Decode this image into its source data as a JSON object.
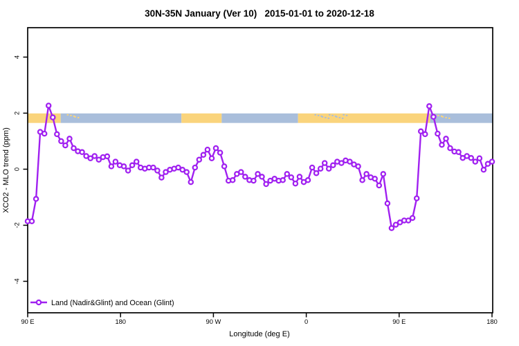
{
  "chart_data": {
    "type": "line",
    "title": "30N-35N January (Ver 10)   2015-01-01 to 2020-12-18",
    "xlabel": "Longitude (deg E)",
    "ylabel": "XCO2 - MLO trend (ppm)",
    "ylim": [
      -5,
      5
    ],
    "yticks": [
      4,
      2,
      0,
      -2,
      -4
    ],
    "xticks": [
      {
        "deg": 90,
        "label": "90 E"
      },
      {
        "deg": 180,
        "label": "180"
      },
      {
        "deg": 270,
        "label": "90 W"
      },
      {
        "deg": 360,
        "label": "0"
      },
      {
        "deg": 450,
        "label": "90 E"
      },
      {
        "deg": 540,
        "label": "180"
      }
    ],
    "axis_note": "x axis runs 450 degrees eastward from 90E (wraps past dateline and 0 back to 180); data for 90E-180 is repeated",
    "grid": "off",
    "legend": {
      "position": "bottom-left",
      "label": "Land (Nadir&Glint) and Ocean (Glint)"
    },
    "series": [
      {
        "name": "Land (Nadir&Glint) and Ocean (Glint)",
        "color": "#A020F0",
        "marker": "open-circle",
        "x_start_deg": 90,
        "x_end_deg": 540,
        "values": [
          -1.86,
          -1.86,
          -1.06,
          1.33,
          1.27,
          2.27,
          1.85,
          1.25,
          1.0,
          0.85,
          1.09,
          0.75,
          0.64,
          0.61,
          0.47,
          0.39,
          0.47,
          0.34,
          0.43,
          0.46,
          0.1,
          0.27,
          0.14,
          0.1,
          -0.05,
          0.14,
          0.27,
          0.06,
          0.02,
          0.06,
          0.06,
          -0.05,
          -0.3,
          -0.1,
          -0.02,
          0.02,
          0.06,
          -0.02,
          -0.1,
          -0.46,
          0.06,
          0.34,
          0.51,
          0.7,
          0.39,
          0.75,
          0.59,
          0.1,
          -0.41,
          -0.39,
          -0.17,
          -0.1,
          -0.27,
          -0.39,
          -0.41,
          -0.17,
          -0.27,
          -0.53,
          -0.41,
          -0.34,
          -0.41,
          -0.39,
          -0.17,
          -0.29,
          -0.51,
          -0.27,
          -0.46,
          -0.39,
          0.06,
          -0.14,
          0.02,
          0.22,
          0.02,
          0.14,
          0.27,
          0.22,
          0.31,
          0.27,
          0.17,
          0.1,
          -0.39,
          -0.17,
          -0.29,
          -0.34,
          -0.58,
          -0.17,
          -1.22,
          -2.1,
          -1.98,
          -1.9,
          -1.83,
          -1.83,
          -1.74,
          -1.04,
          1.35,
          1.25,
          2.25,
          1.87,
          1.27,
          0.87,
          1.09,
          0.75,
          0.63,
          0.61,
          0.4,
          0.47,
          0.4,
          0.27,
          0.39,
          -0.02,
          0.19,
          0.27
        ]
      }
    ],
    "map_band": {
      "description": "30N-35N world coastline strip drawn across the plot",
      "value_top": 1.99,
      "value_bottom": 1.65,
      "land_color": "#FAD47C",
      "ocean_color": "#A9BEDB",
      "segments": [
        {
          "from_deg": 90,
          "to_deg": 122,
          "type": "land"
        },
        {
          "from_deg": 122,
          "to_deg": 239,
          "type": "ocean"
        },
        {
          "from_deg": 239,
          "to_deg": 278,
          "type": "land"
        },
        {
          "from_deg": 278,
          "to_deg": 352,
          "type": "ocean"
        },
        {
          "from_deg": 352,
          "to_deg": 480,
          "type": "land"
        },
        {
          "from_deg": 480,
          "to_deg": 540.5,
          "type": "ocean"
        }
      ],
      "specks": [
        {
          "from_deg": 128,
          "to_deg": 140,
          "type": "land",
          "name": "japan-islands"
        },
        {
          "from_deg": 368,
          "to_deg": 400,
          "type": "ocean",
          "name": "mediterranean-sea"
        },
        {
          "from_deg": 484,
          "to_deg": 499,
          "type": "land",
          "name": "japan-islands-repeat"
        }
      ]
    }
  }
}
